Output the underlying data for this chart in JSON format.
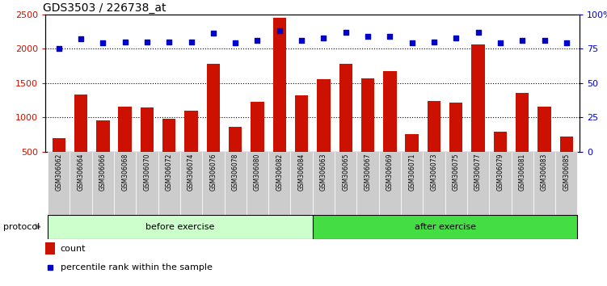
{
  "title": "GDS3503 / 226738_at",
  "categories": [
    "GSM306062",
    "GSM306064",
    "GSM306066",
    "GSM306068",
    "GSM306070",
    "GSM306072",
    "GSM306074",
    "GSM306076",
    "GSM306078",
    "GSM306080",
    "GSM306082",
    "GSM306084",
    "GSM306063",
    "GSM306065",
    "GSM306067",
    "GSM306069",
    "GSM306071",
    "GSM306073",
    "GSM306075",
    "GSM306077",
    "GSM306079",
    "GSM306081",
    "GSM306083",
    "GSM306085"
  ],
  "bar_values": [
    700,
    1330,
    950,
    1150,
    1140,
    980,
    1090,
    1780,
    855,
    1230,
    2450,
    1320,
    1550,
    1780,
    1570,
    1670,
    750,
    1240,
    1210,
    2060,
    790,
    1350,
    1160,
    720
  ],
  "percentile_values": [
    75,
    82,
    79,
    80,
    80,
    80,
    80,
    86,
    79,
    81,
    88,
    81,
    83,
    87,
    84,
    84,
    79,
    80,
    83,
    87,
    79,
    81,
    81,
    79
  ],
  "bar_color": "#cc1100",
  "dot_color": "#0000cc",
  "ylim_left": [
    500,
    2500
  ],
  "ylim_right": [
    0,
    100
  ],
  "yticks_left": [
    500,
    1000,
    1500,
    2000,
    2500
  ],
  "yticks_right": [
    0,
    25,
    50,
    75,
    100
  ],
  "ytick_labels_right": [
    "0",
    "25",
    "50",
    "75",
    "100%"
  ],
  "grid_values": [
    1000,
    1500,
    2000
  ],
  "before_count": 12,
  "after_count": 12,
  "before_label": "before exercise",
  "after_label": "after exercise",
  "protocol_label": "protocol",
  "legend_count_label": "count",
  "legend_pct_label": "percentile rank within the sample",
  "bg_color": "#ffffff",
  "plot_bg_color": "#ffffff",
  "before_bg": "#ccffcc",
  "after_bg": "#44dd44",
  "xticklabel_bg": "#cccccc",
  "title_fontsize": 10,
  "axis_fontsize": 8,
  "dot_scale": 18
}
